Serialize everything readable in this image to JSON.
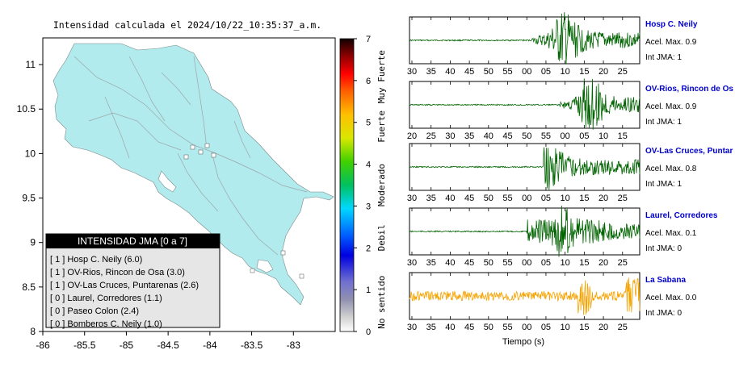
{
  "map": {
    "title": "Intensidad calculada el 2024/10/22_10:35:37_a.m.",
    "x_ticks": [
      "-86",
      "-85.5",
      "-85",
      "-84.5",
      "-84",
      "-83.5",
      "-83"
    ],
    "y_ticks": [
      "11",
      "10.5",
      "10",
      "9.5",
      "9",
      "8.5",
      "8"
    ],
    "xlim": [
      -86,
      -82.5
    ],
    "ylim": [
      8,
      11.3
    ],
    "land_color": "#b2ebed",
    "legend": {
      "title": "INTENSIDAD JMA [0 a 7]",
      "items": [
        "[ 1 ]  Hosp C. Neily (6.0)",
        "[ 1 ]  OV-Rios, Rincon de Osa (3.0)",
        "[ 1 ]  OV-Las Cruces, Puntarenas (2.6)",
        "[ 0 ]  Laurel, Corredores (1.1)",
        "[ 0 ]  Paseo Colon (2.4)",
        "[ 0 ]  Bomberos C. Neily (1.0)"
      ]
    }
  },
  "colorbar": {
    "ticks": [
      "7",
      "6",
      "5",
      "4",
      "3",
      "2",
      "1",
      "0"
    ],
    "labels": [
      "Muy Fuerte",
      "Fuerte",
      "Moderado",
      "Debil",
      "No sentido"
    ]
  },
  "waveforms": {
    "xlabel": "Tiempo (s)",
    "panels": [
      {
        "station": "Hosp C. Neily",
        "accel": "Acel. Max. 0.9",
        "jma": "Int JMA: 1",
        "color": "#006400",
        "ticks": [
          "30",
          "35",
          "40",
          "45",
          "50",
          "55",
          "00",
          "05",
          "10",
          "15",
          "20",
          "25"
        ],
        "tick_start": 30,
        "onset": 53,
        "peak": 66,
        "amp_main": 0.95
      },
      {
        "station": "OV-Rios, Rincon de Os",
        "accel": "Acel. Max. 0.9",
        "jma": "Int JMA: 1",
        "color": "#006400",
        "ticks": [
          "20",
          "25",
          "30",
          "35",
          "40",
          "45",
          "50",
          "55",
          "00",
          "05",
          "10",
          "15"
        ],
        "tick_start": 20,
        "onset": 65,
        "peak": 77,
        "amp_main": 0.95
      },
      {
        "station": "OV-Las Cruces, Puntar",
        "accel": "Acel. Max. 0.8",
        "jma": "Int JMA: 1",
        "color": "#006400",
        "ticks": [
          "30",
          "35",
          "40",
          "45",
          "50",
          "55",
          "00",
          "05",
          "10",
          "15",
          "20",
          "25"
        ],
        "tick_start": 30,
        "onset": 58,
        "peak": 59,
        "amp_main": 0.9
      },
      {
        "station": "Laurel, Corredores",
        "accel": "Acel. Max. 0.1",
        "jma": "Int JMA: 0",
        "color": "#006400",
        "ticks": [
          "30",
          "35",
          "40",
          "45",
          "50",
          "55",
          "00",
          "05",
          "10",
          "15",
          "20",
          "25"
        ],
        "tick_start": 30,
        "onset": 51,
        "peak": 65,
        "amp_main": 0.85
      },
      {
        "station": "La Sabana",
        "accel": "Acel. Max. 0.0",
        "jma": "Int JMA: 0",
        "color": "#f5a300",
        "ticks": [
          "30",
          "35",
          "40",
          "45",
          "50",
          "55",
          "00",
          "05",
          "10",
          "15",
          "20",
          "25"
        ],
        "tick_start": 30,
        "onset": 0,
        "peak": 75,
        "amp_main": 0.9
      }
    ]
  }
}
